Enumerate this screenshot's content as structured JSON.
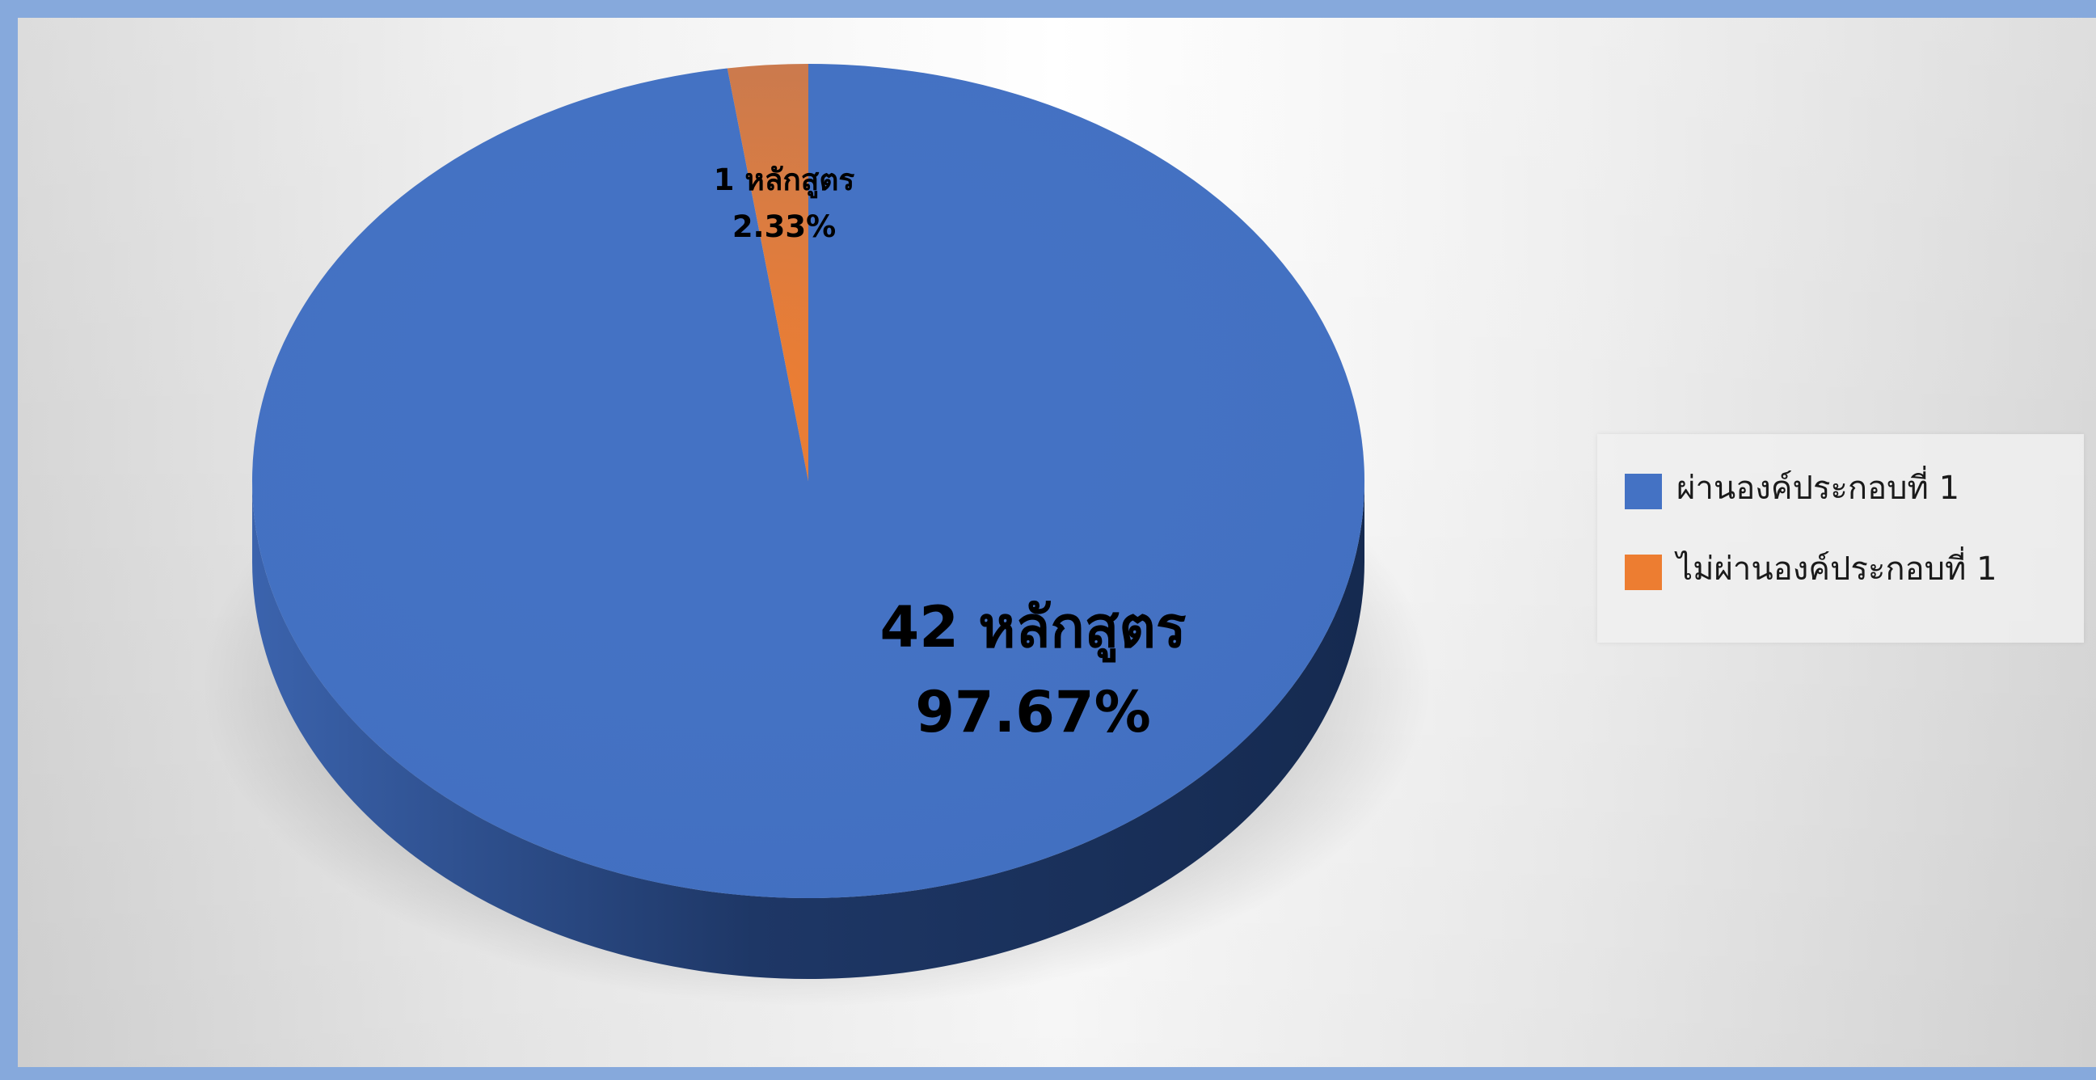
{
  "chart_data": {
    "type": "pie",
    "title": "",
    "categories": [
      "ผ่านองค์ประกอบที่ 1",
      "ไม่ผ่านองค์ประกอบที่ 1"
    ],
    "values": [
      42,
      1
    ],
    "percentages": [
      97.67,
      2.33
    ],
    "colors": [
      "#4472c4",
      "#ed7d31"
    ],
    "data_labels": [
      {
        "line1": "42  หลักสูตร",
        "line2": "97.67%"
      },
      {
        "line1": "1 หลักสูตร",
        "line2": "2.33%"
      }
    ],
    "legend_position": "right",
    "style": "3d"
  },
  "legend": {
    "items": [
      {
        "label": "ผ่านองค์ประกอบที่  1",
        "color": "#4472c4"
      },
      {
        "label": "ไม่ผ่านองค์ประกอบที่  1",
        "color": "#ed7d31"
      }
    ]
  }
}
